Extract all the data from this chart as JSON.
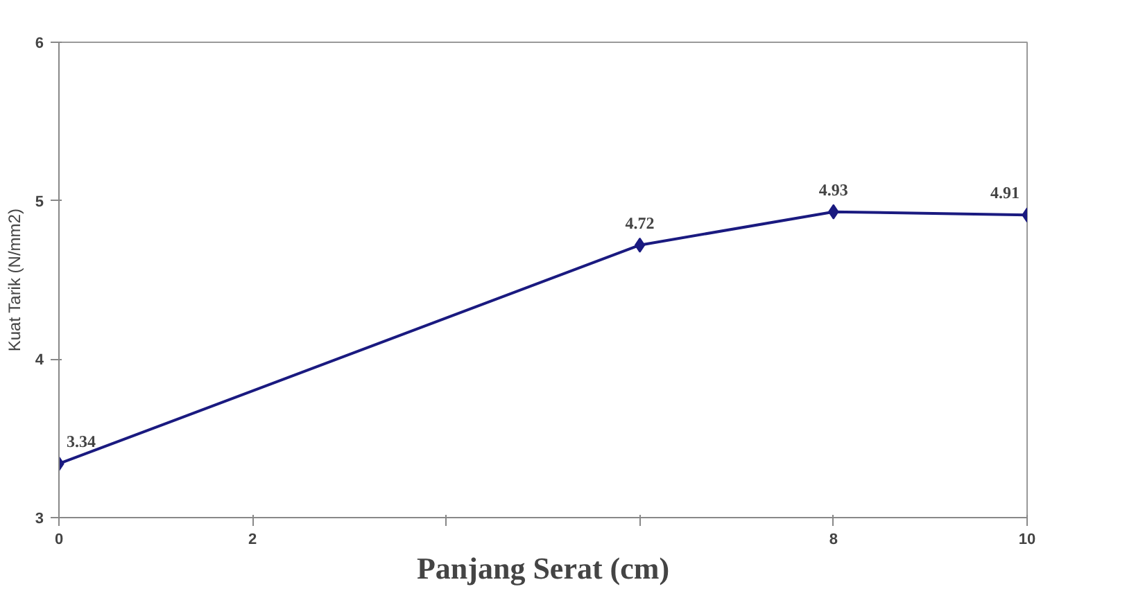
{
  "chart_data": {
    "type": "line",
    "xlabel": "Panjang Serat (cm)",
    "ylabel": "Kuat Tarik (N/mm2)",
    "x": [
      0,
      6,
      8,
      10
    ],
    "series": [
      {
        "color": "#1a1a80",
        "values": [
          3.34,
          4.72,
          4.93,
          4.91
        ]
      }
    ],
    "xlim": [
      0,
      10
    ],
    "xticks": [
      0,
      2,
      {
        "value": 4,
        "label": null
      },
      {
        "value": 6,
        "label": null
      },
      8,
      10
    ],
    "ylim": [
      3,
      6
    ],
    "yticks": [
      3,
      4,
      5,
      6
    ],
    "data_labels": true,
    "marker": "diamond",
    "line_style": "solid",
    "grid": false
  }
}
